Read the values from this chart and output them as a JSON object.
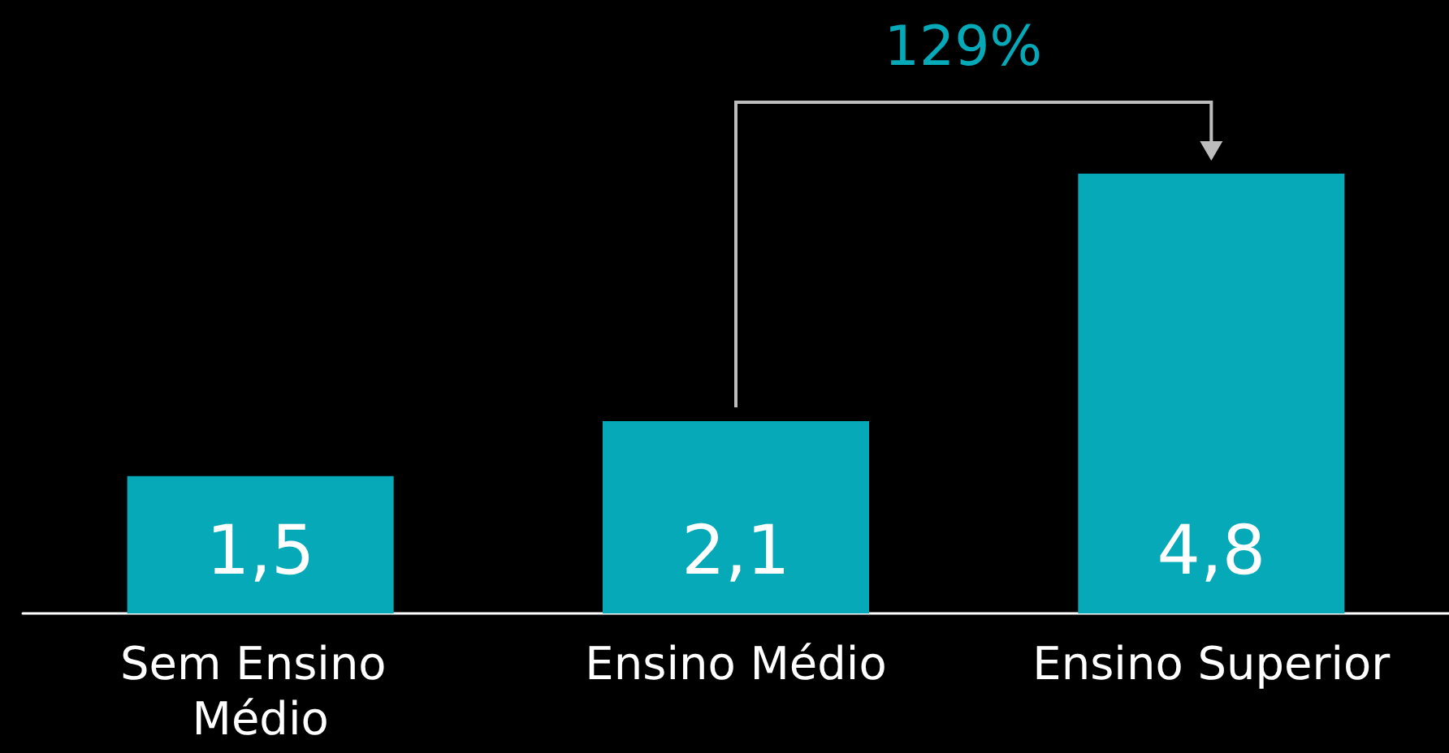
{
  "chart_data": {
    "type": "bar",
    "categories": [
      "Sem Ensino Médio",
      "Ensino Médio",
      "Ensino Superior"
    ],
    "values": [
      1.5,
      2.1,
      4.8
    ],
    "color": "#05a9b8",
    "value_labels": [
      "1,5",
      "2,1",
      "4,8"
    ],
    "annotations": [
      "129%"
    ]
  }
}
